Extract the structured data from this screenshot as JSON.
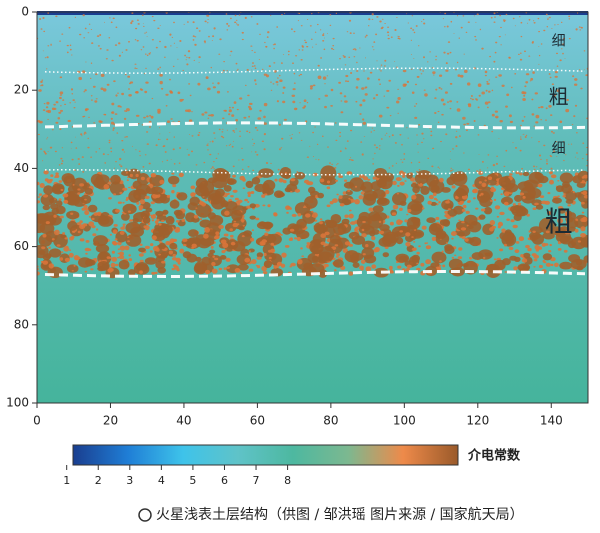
{
  "chart_data": {
    "type": "layers",
    "xlim": [
      0,
      150
    ],
    "xticks": [
      0,
      20,
      40,
      60,
      80,
      100,
      120,
      140
    ],
    "ylim": [
      0,
      100
    ],
    "yticks": [
      0,
      20,
      40,
      60,
      80,
      100
    ],
    "layers": [
      {
        "label": "细",
        "top": 0,
        "bottom": 15
      },
      {
        "label": "粗",
        "top": 15,
        "bottom": 29
      },
      {
        "label": "细",
        "top": 29,
        "bottom": 41
      },
      {
        "label": "粗",
        "top": 41,
        "bottom": 67
      }
    ],
    "boundaries": [
      {
        "depth": 15,
        "style": "dotted"
      },
      {
        "depth": 29,
        "style": "dashed"
      },
      {
        "depth": 41,
        "style": "dotted"
      },
      {
        "depth": 67,
        "style": "dashed"
      }
    ],
    "colorbar": {
      "label": "介电常数",
      "clim": [
        1.2,
        13.4
      ],
      "ticks": [
        1,
        2,
        3,
        4,
        5,
        6,
        7,
        8
      ],
      "colors": [
        "#1a3e8f",
        "#1f7ed6",
        "#3ec3ea",
        "#5fc3c8",
        "#4db8a0",
        "#7cb890",
        "#ee8a4a",
        "#9a5a2a"
      ]
    },
    "caption": "火星浅表土层结构（供图 / 邹洪瑶  图片来源 / 国家航天局）"
  }
}
